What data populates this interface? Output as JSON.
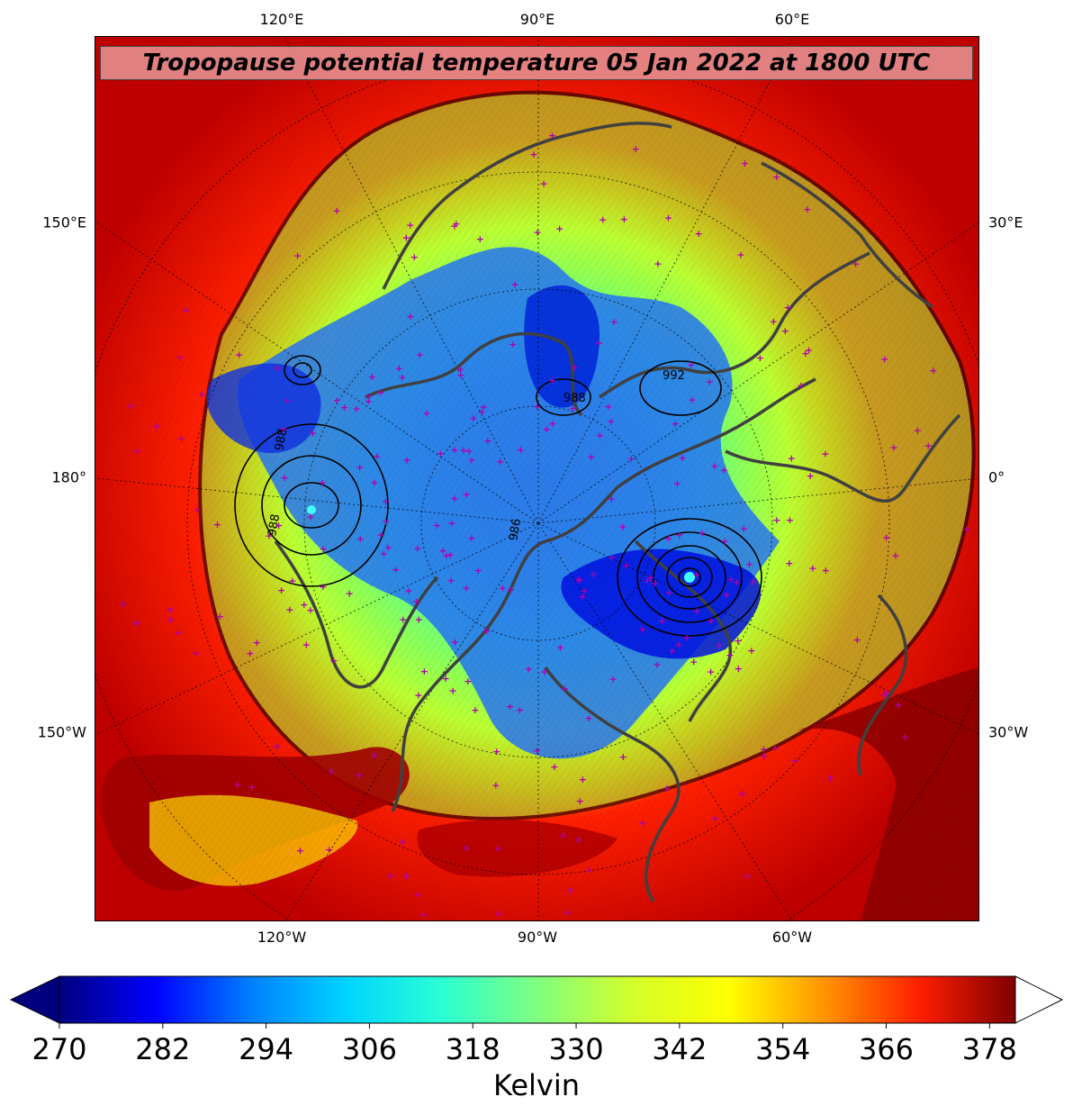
{
  "title": "Tropopause potential temperature 05 Jan 2022 at 1800 UTC",
  "map": {
    "projection": "north polar stereographic",
    "top_labels": [
      "120°E",
      "90°E",
      "60°E"
    ],
    "bottom_labels": [
      "120°W",
      "90°W",
      "60°W"
    ],
    "left_labels": [
      "150°E",
      "180°",
      "150°W"
    ],
    "right_labels": [
      "30°E",
      "0°",
      "30°W"
    ],
    "field": "Tropopause potential temperature",
    "contour_labels": [
      "988",
      "988",
      "988",
      "986",
      "992"
    ],
    "station_marker_color": "#b000b0",
    "coastline_color": "#404040"
  },
  "colorbar": {
    "ticks": [
      "270",
      "282",
      "294",
      "306",
      "318",
      "330",
      "342",
      "354",
      "366",
      "378"
    ],
    "label": "Kelvin",
    "min": 270,
    "max": 381,
    "extend": "both",
    "colors": [
      "#00007f",
      "#0000ff",
      "#007fff",
      "#00d4ff",
      "#2affd4",
      "#7fff7f",
      "#d4ff2a",
      "#ffff00",
      "#ff9400",
      "#ff1e00",
      "#7f0000"
    ]
  }
}
